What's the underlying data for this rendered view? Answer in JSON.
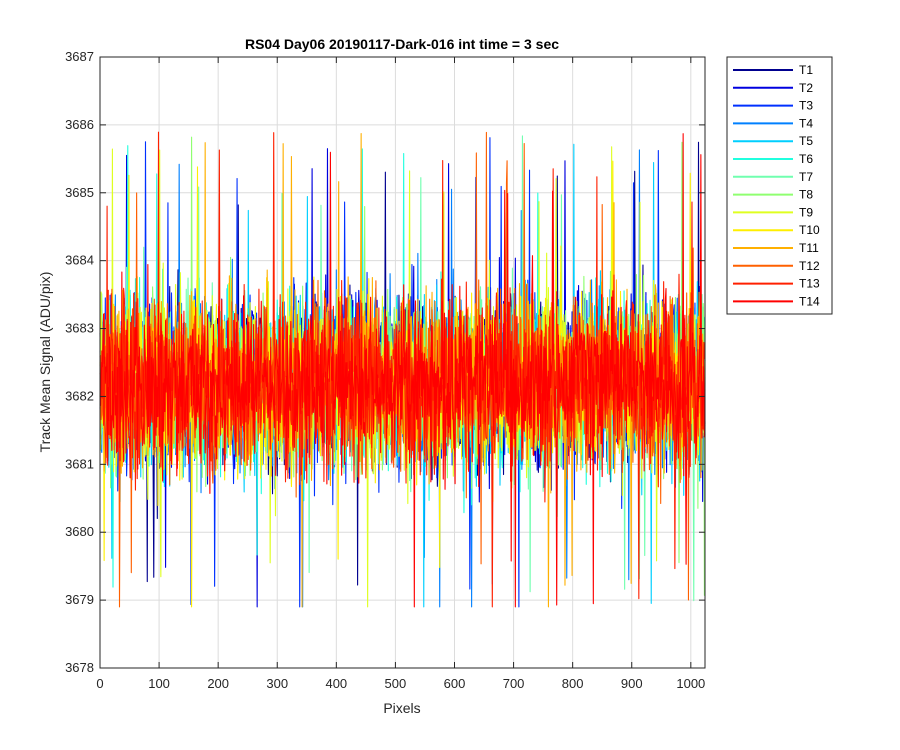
{
  "chart_data": {
    "type": "line",
    "title": "RS04 Day06 20190117-Dark-016 int time = 3 sec",
    "xlabel": "Pixels",
    "ylabel": "Track Mean Signal (ADU/pix)",
    "xlim": [
      0,
      1024
    ],
    "ylim": [
      3678,
      3687
    ],
    "xticks": [
      0,
      100,
      200,
      300,
      400,
      500,
      600,
      700,
      800,
      900,
      1000
    ],
    "yticks": [
      3678,
      3679,
      3680,
      3681,
      3682,
      3683,
      3684,
      3685,
      3686,
      3687
    ],
    "grid": true,
    "legend_location": "outside-top-right",
    "series_mean": 3682.2,
    "series_typical_range": [
      3679.8,
      3684.6
    ],
    "series": [
      {
        "name": "T1",
        "color": "#00008f"
      },
      {
        "name": "T2",
        "color": "#0000df"
      },
      {
        "name": "T3",
        "color": "#0030ff"
      },
      {
        "name": "T4",
        "color": "#0080ff"
      },
      {
        "name": "T5",
        "color": "#00cfff"
      },
      {
        "name": "T6",
        "color": "#20ffdf"
      },
      {
        "name": "T7",
        "color": "#70ffaf"
      },
      {
        "name": "T8",
        "color": "#8fff70"
      },
      {
        "name": "T9",
        "color": "#dfff20"
      },
      {
        "name": "T10",
        "color": "#ffef00"
      },
      {
        "name": "T11",
        "color": "#ffb000"
      },
      {
        "name": "T12",
        "color": "#ff6000"
      },
      {
        "name": "T13",
        "color": "#ff2000"
      },
      {
        "name": "T14",
        "color": "#ff0000"
      }
    ]
  }
}
